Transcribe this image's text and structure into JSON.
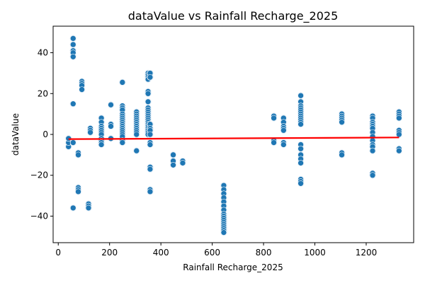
{
  "chart_data": {
    "type": "scatter",
    "title": "dataValue vs Rainfall Recharge_2025",
    "xlabel": "Rainfall Recharge_2025",
    "ylabel": "dataValue",
    "xlim": [
      -20,
      1385
    ],
    "ylim": [
      -53,
      53
    ],
    "xticks": [
      0,
      200,
      400,
      600,
      800,
      1000,
      1200
    ],
    "yticks": [
      -40,
      -20,
      0,
      20,
      40
    ],
    "grid": false,
    "legend": "none",
    "colors": {
      "points": "#1f77b4",
      "point_halo": "#c6dbef",
      "trend": "#ff0000"
    },
    "columns": [
      {
        "x": 40,
        "y": [
          -6,
          -4,
          -2
        ]
      },
      {
        "x": 58,
        "y": [
          47,
          44,
          41,
          40,
          38,
          15,
          -4,
          -36
        ]
      },
      {
        "x": 78,
        "y": [
          -9,
          -10,
          -26,
          -27,
          -28
        ]
      },
      {
        "x": 92,
        "y": [
          26,
          25,
          24,
          22
        ]
      },
      {
        "x": 118,
        "y": [
          -34,
          -35,
          -36
        ]
      },
      {
        "x": 125,
        "y": [
          3,
          2,
          1
        ]
      },
      {
        "x": 168,
        "y": [
          8,
          6,
          4,
          3,
          2,
          1,
          0,
          -2,
          -3,
          -4,
          -5
        ]
      },
      {
        "x": 205,
        "y": [
          14.5,
          5,
          4,
          -2
        ]
      },
      {
        "x": 250,
        "y": [
          25.5,
          14,
          13,
          12,
          10,
          9,
          8,
          7,
          6,
          5,
          4,
          3,
          2,
          1,
          0,
          -1,
          -3,
          -4
        ]
      },
      {
        "x": 305,
        "y": [
          11,
          10,
          9,
          8,
          7,
          6,
          5,
          4,
          3,
          2,
          1,
          0,
          -8
        ]
      },
      {
        "x": 350,
        "y": [
          30,
          29,
          28,
          27,
          21,
          20,
          16,
          13,
          12,
          11,
          10,
          9,
          8,
          7,
          6,
          5,
          4,
          3,
          2,
          1,
          0
        ]
      },
      {
        "x": 358,
        "y": [
          30,
          28,
          5,
          3,
          2,
          0,
          -4,
          -5,
          -16,
          -17,
          -27,
          -28
        ]
      },
      {
        "x": 448,
        "y": [
          -10,
          -13,
          -15
        ]
      },
      {
        "x": 485,
        "y": [
          -13,
          -14
        ]
      },
      {
        "x": 645,
        "y": [
          -25,
          -27,
          -29,
          -31,
          -33,
          -35,
          -37,
          -39,
          -40,
          -41,
          -42,
          -43,
          -44,
          -45,
          -46,
          -47,
          -48
        ]
      },
      {
        "x": 840,
        "y": [
          9,
          8,
          -3,
          -4
        ]
      },
      {
        "x": 878,
        "y": [
          8,
          6,
          4,
          3,
          2,
          -4,
          -5
        ]
      },
      {
        "x": 945,
        "y": [
          19,
          16,
          14,
          13,
          12,
          11,
          10,
          9,
          8,
          7,
          6,
          5,
          -5,
          -7,
          -10,
          -12,
          -14,
          -22,
          -23,
          -24
        ]
      },
      {
        "x": 1105,
        "y": [
          10,
          9,
          8,
          7,
          6,
          -9,
          -10
        ]
      },
      {
        "x": 1225,
        "y": [
          9,
          8,
          6,
          5,
          4,
          3,
          1,
          -1,
          -3,
          -5,
          -6,
          -8,
          -19,
          -20
        ]
      },
      {
        "x": 1328,
        "y": [
          11,
          10,
          9,
          8,
          2,
          1,
          0,
          -7,
          -8
        ]
      }
    ],
    "trend": {
      "x": [
        40,
        1328
      ],
      "y": [
        -2.3,
        -1.5
      ]
    }
  }
}
